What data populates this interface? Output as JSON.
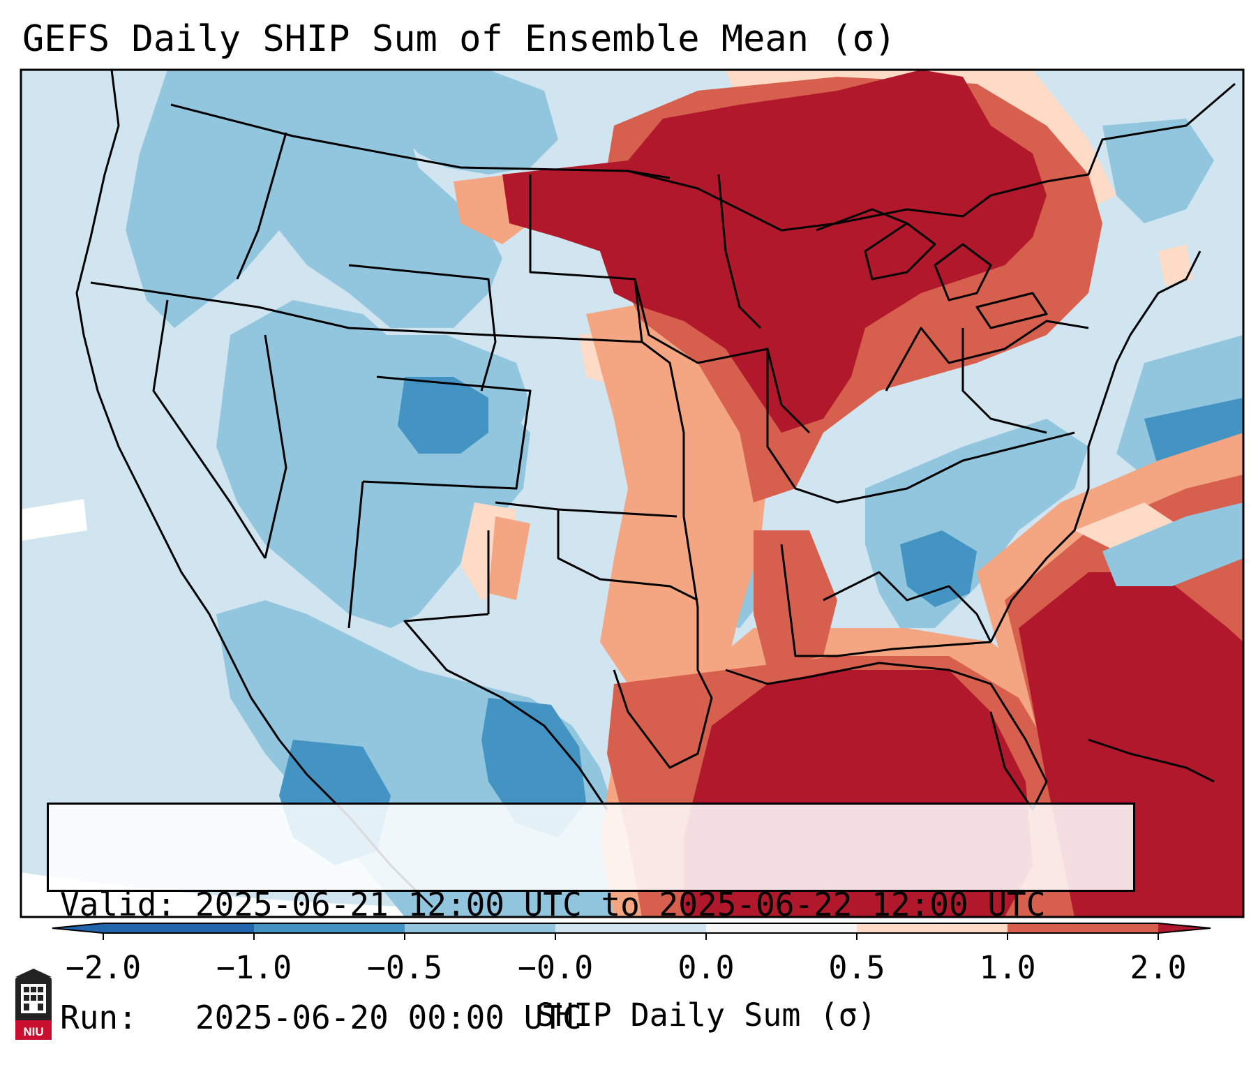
{
  "title": "GEFS Daily SHIP Sum of Ensemble Mean (σ)",
  "info": {
    "valid_label": "Valid:",
    "valid_value": "2025-06-21 12:00 UTC to 2025-06-22 12:00 UTC",
    "run_label": "Run:",
    "run_value": "2025-06-20 00:00 UTC"
  },
  "colorbar": {
    "title": "SHIP Daily Sum (σ)",
    "ticks": [
      "−2.0",
      "−1.0",
      "−0.5",
      "−0.0",
      "0.0",
      "0.5",
      "1.0",
      "2.0"
    ],
    "colors": [
      "#2166ac",
      "#4393c3",
      "#92c5de",
      "#d1e5f0",
      "#f7f7f7",
      "#fddbc7",
      "#f4a582",
      "#d6604d",
      "#b2182b"
    ]
  },
  "map": {
    "projection": "Lambert conformal, CONUS",
    "ocean_fill": "#d1e5f0",
    "field_regions": [
      {
        "region": "Pacific Northwest",
        "sigma_range": "-1.0 to -0.5"
      },
      {
        "region": "Great Basin / Intermountain West",
        "sigma_range": "-1.0 to -0.5"
      },
      {
        "region": "Colorado",
        "sigma_range": "-2.0 to -1.0"
      },
      {
        "region": "Northern Plains / Upper Midwest / Great Lakes",
        "sigma_range": ">= 2.0"
      },
      {
        "region": "Ohio Valley / Mid-South",
        "sigma_range": "1.0 to 2.0"
      },
      {
        "region": "Southeast (Georgia / South Carolina)",
        "sigma_range": "-1.0 to -0.5"
      },
      {
        "region": "Gulf of Mexico",
        "sigma_range": ">= 2.0"
      },
      {
        "region": "Western Atlantic",
        "sigma_range": ">= 2.0"
      },
      {
        "region": "Texas / Northern Mexico",
        "sigma_range": "-1.0 to -0.5"
      }
    ]
  }
}
